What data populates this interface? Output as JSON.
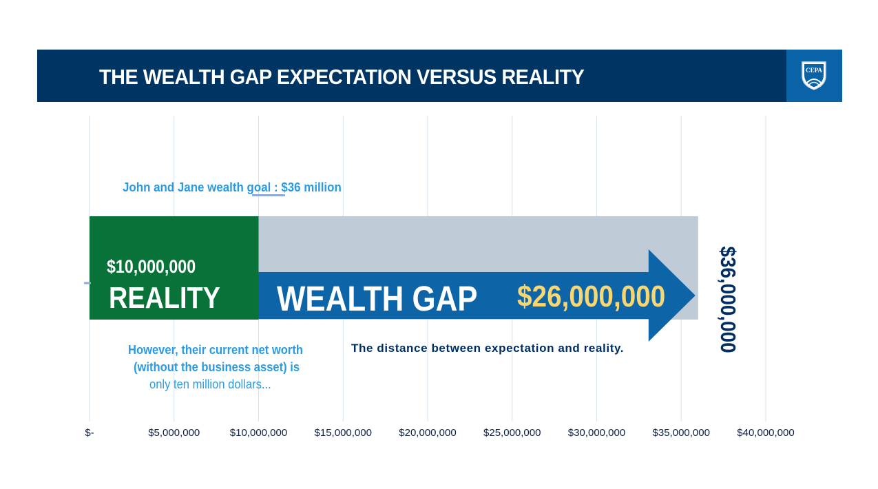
{
  "header": {
    "title": "THE WEALTH GAP EXPECTATION VERSUS REALITY",
    "logo_text": "CEPA"
  },
  "chart_data": {
    "type": "bar",
    "orientation": "horizontal",
    "stacked": true,
    "title": "",
    "xlabel": "",
    "ylabel": "",
    "xlim": [
      0,
      40000000
    ],
    "grid": true,
    "x_ticks": [
      0,
      5000000,
      10000000,
      15000000,
      20000000,
      25000000,
      30000000,
      35000000,
      40000000
    ],
    "tick_labels": [
      "$-",
      "$5,000,000",
      "$10,000,000",
      "$15,000,000",
      "$20,000,000",
      "$25,000,000",
      "$30,000,000",
      "$35,000,000",
      "$40,000,000"
    ],
    "series": [
      {
        "name": "REALITY",
        "value": 10000000,
        "value_label": "$10,000,000",
        "color": "#087238"
      },
      {
        "name": "WEALTH GAP",
        "value": 26000000,
        "value_label": "$26,000,000",
        "color": "#c0cbd8"
      }
    ],
    "goal": {
      "value": 36000000,
      "label": "$36,000,000"
    },
    "arrow": {
      "from": 10000000,
      "to": 36000000,
      "color": "#0d64a6"
    },
    "annotations": {
      "goal_text": "John and Jane wealth goal : $36 million",
      "networth_line1": "However,  their  current  net worth",
      "networth_line2": "(without the business asset) is",
      "networth_line3": "only ten million dollars...",
      "distance": "The distance between expectation and reality."
    }
  }
}
